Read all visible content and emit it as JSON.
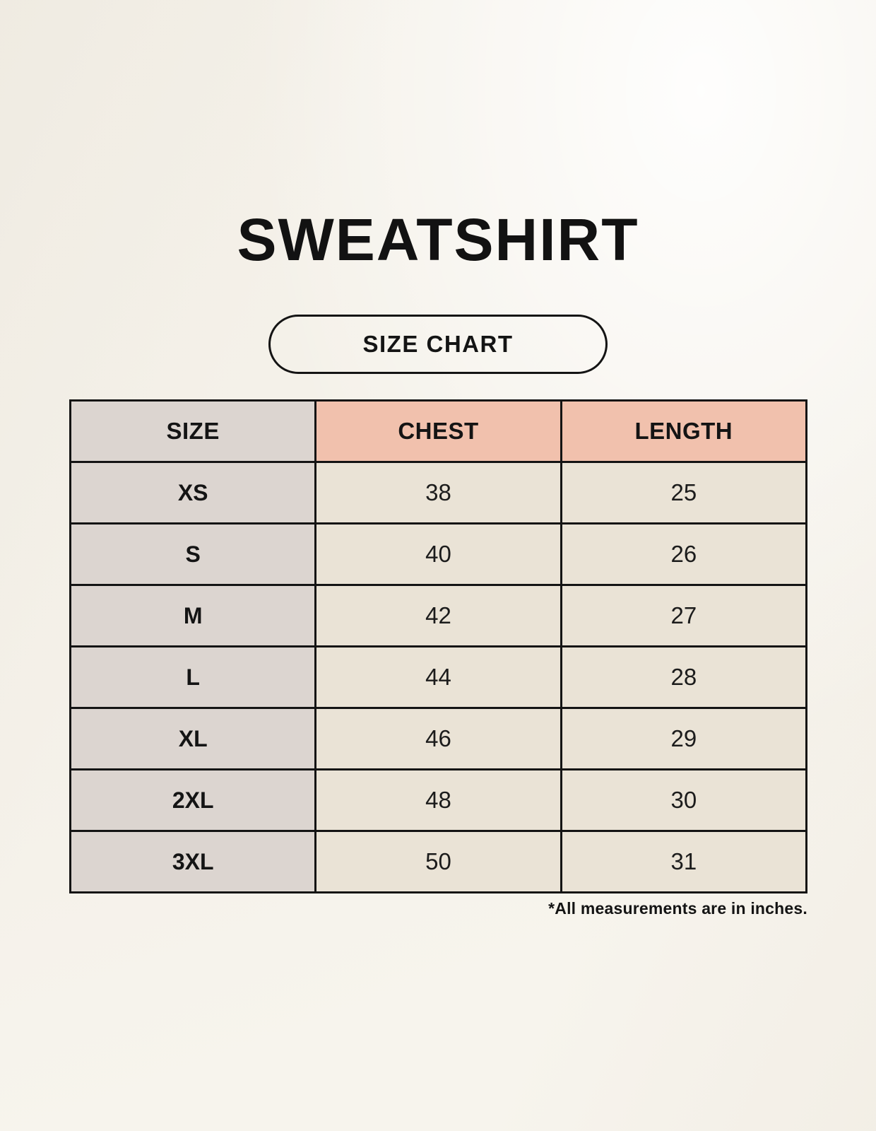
{
  "header": {
    "title": "SWEATSHIRT",
    "badge_label": "SIZE CHART"
  },
  "chart_data": {
    "type": "table",
    "title": "SWEATSHIRT",
    "columns": [
      "SIZE",
      "CHEST",
      "LENGTH"
    ],
    "rows": [
      [
        "XS",
        "38",
        "25"
      ],
      [
        "S",
        "40",
        "26"
      ],
      [
        "M",
        "42",
        "27"
      ],
      [
        "L",
        "44",
        "28"
      ],
      [
        "XL",
        "46",
        "29"
      ],
      [
        "2XL",
        "48",
        "30"
      ],
      [
        "3XL",
        "50",
        "31"
      ]
    ]
  },
  "footnote": "*All measurements are in inches.",
  "colors": {
    "background": "#f7f4ed",
    "header_accent_salmon": "#f1c1ad",
    "size_column_taupe": "#dcd5d0",
    "data_cell_cream": "#eae3d6",
    "border_black": "#141414",
    "text": "#141414"
  }
}
